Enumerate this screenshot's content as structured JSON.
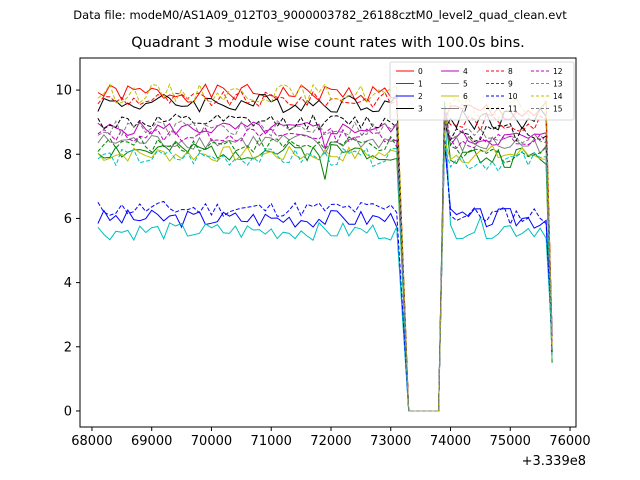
{
  "suptitle": "Data file: modeM0/AS1A09_012T03_9000003782_26188cztM0_level2_quad_clean.evt",
  "chart_data": {
    "type": "line",
    "title": "Quadrant 3 module wise count rates with 100.0s bins.",
    "xlabel": "",
    "ylabel": "",
    "x_offset_label": "+3.339e8",
    "xlim": [
      67800,
      76100
    ],
    "ylim": [
      -0.5,
      11.0
    ],
    "xticks": [
      68000,
      69000,
      70000,
      71000,
      72000,
      73000,
      74000,
      75000,
      76000
    ],
    "yticks": [
      0,
      2,
      4,
      6,
      8,
      10
    ],
    "grid": false,
    "legend_position": "top-right",
    "legend_columns": 4,
    "x_segments": [
      {
        "start": 68100,
        "end": 73100,
        "step": 100
      },
      {
        "start": 73200,
        "end": 73800,
        "step": 100
      },
      {
        "start": 73900,
        "end": 75700,
        "step": 100
      }
    ],
    "gap_values": [
      5.0,
      0.0,
      0.0,
      0.0,
      0.0,
      0.0,
      0.0
    ],
    "ramp_up": 9.0,
    "final_drop": 2.0,
    "series": [
      {
        "name": "0",
        "color": "#ff0000",
        "dash": "solid",
        "base1": 9.9,
        "base2": 9.3,
        "amp": 0.28,
        "seed": 1
      },
      {
        "name": "1",
        "color": "#008000",
        "dash": "solid",
        "base1": 8.1,
        "base2": 7.9,
        "amp": 0.3,
        "seed": 2
      },
      {
        "name": "2",
        "color": "#0000ff",
        "dash": "solid",
        "base1": 6.0,
        "base2": 6.0,
        "amp": 0.28,
        "seed": 3
      },
      {
        "name": "3",
        "color": "#000000",
        "dash": "solid",
        "base1": 9.6,
        "base2": 9.1,
        "amp": 0.3,
        "seed": 4
      },
      {
        "name": "4",
        "color": "#bf00bf",
        "dash": "solid",
        "base1": 8.8,
        "base2": 8.5,
        "amp": 0.22,
        "seed": 5
      },
      {
        "name": "5",
        "color": "#00bfbf",
        "dash": "solid",
        "base1": 5.6,
        "base2": 5.7,
        "amp": 0.28,
        "seed": 6
      },
      {
        "name": "6",
        "color": "#bfbf00",
        "dash": "solid",
        "base1": 8.0,
        "base2": 8.0,
        "amp": 0.25,
        "seed": 7
      },
      {
        "name": "7",
        "color": "#808080",
        "dash": "solid",
        "base1": 8.4,
        "base2": 8.3,
        "amp": 0.25,
        "seed": 8
      },
      {
        "name": "8",
        "color": "#ff0000",
        "dash": "dashed",
        "base1": 9.7,
        "base2": 9.0,
        "amp": 0.25,
        "seed": 9
      },
      {
        "name": "9",
        "color": "#008000",
        "dash": "dashed",
        "base1": 8.3,
        "base2": 8.0,
        "amp": 0.25,
        "seed": 10
      },
      {
        "name": "10",
        "color": "#0000ff",
        "dash": "dashed",
        "base1": 6.3,
        "base2": 6.1,
        "amp": 0.25,
        "seed": 11
      },
      {
        "name": "11",
        "color": "#000000",
        "dash": "dashed",
        "base1": 9.0,
        "base2": 8.7,
        "amp": 0.25,
        "seed": 12
      },
      {
        "name": "12",
        "color": "#bf00bf",
        "dash": "dashed",
        "base1": 8.6,
        "base2": 8.4,
        "amp": 0.22,
        "seed": 13
      },
      {
        "name": "13",
        "color": "#00bfbf",
        "dash": "dashed",
        "base1": 7.9,
        "base2": 7.8,
        "amp": 0.28,
        "seed": 14
      },
      {
        "name": "14",
        "color": "#bfbf00",
        "dash": "dashed",
        "base1": 9.9,
        "base2": 9.4,
        "amp": 0.3,
        "seed": 15
      },
      {
        "name": "15",
        "color": "#808080",
        "dash": "dashed",
        "base1": 8.8,
        "base2": 8.6,
        "amp": 0.25,
        "seed": 16
      }
    ]
  }
}
